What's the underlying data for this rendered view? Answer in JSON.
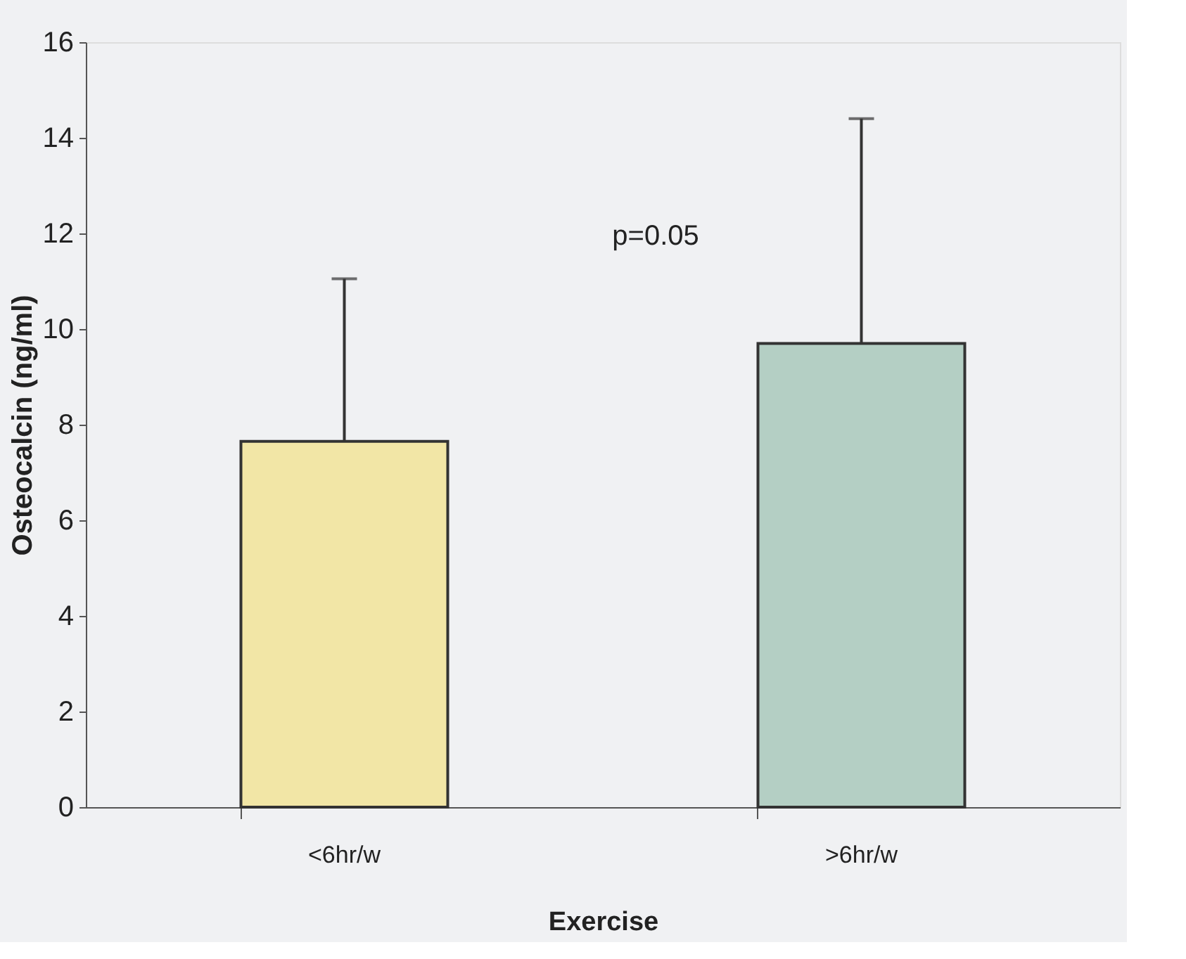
{
  "chart_data": {
    "type": "bar",
    "categories": [
      "<6hr/w",
      ">6hr/w"
    ],
    "values": [
      7.65,
      9.7
    ],
    "colors": [
      "#f2e6a6",
      "#b4cfc4"
    ],
    "errors": [
      [
        7.65,
        11.05
      ],
      [
        9.7,
        14.4
      ]
    ],
    "xlabel": "Exercise",
    "ylabel": "Osteocalcin (ng/ml)",
    "ylim": [
      0,
      16
    ],
    "yticks": [
      0,
      2,
      4,
      6,
      8,
      10,
      12,
      14,
      16
    ],
    "annotations": [
      "p=0.05"
    ],
    "grid": false
  }
}
